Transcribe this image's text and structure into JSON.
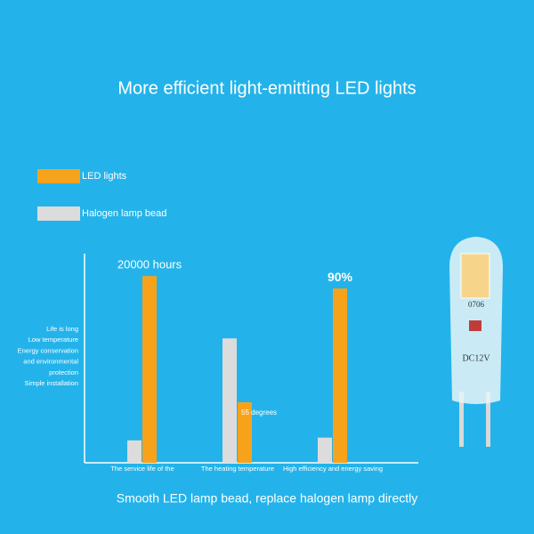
{
  "header": {
    "title": "More efficient light-emitting LED lights"
  },
  "chart_data": {
    "type": "bar",
    "categories": [
      "The service life of the",
      "The heating temperature",
      "High efficiency and energy saving"
    ],
    "series": [
      {
        "name": "LED lights",
        "color": "#f7a21b",
        "values": [
          20000,
          55,
          90
        ],
        "value_labels": [
          "20000 hours",
          "55 degrees",
          "90%"
        ]
      },
      {
        "name": "Halogen lamp bead",
        "color": "#dcdcdc",
        "values": [
          2400,
          113,
          13
        ]
      }
    ],
    "ylims": [
      [
        0,
        22400
      ],
      [
        0,
        190
      ],
      [
        0,
        108
      ]
    ],
    "annotations": [
      "Life is long",
      "Low temperature",
      "Energy conservation",
      "and environmental",
      "protection",
      "Simple installation"
    ]
  },
  "footer": {
    "caption": "Smooth LED lamp bead, replace halogen lamp directly"
  },
  "product": {
    "marking_top": "0706",
    "marking_voltage": "DC12V"
  }
}
